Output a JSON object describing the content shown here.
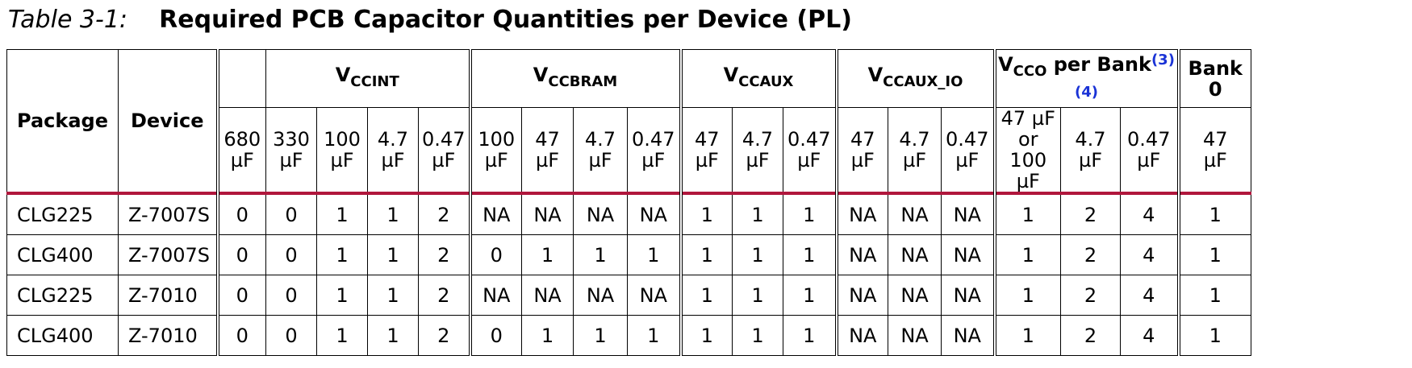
{
  "caption": {
    "label": "Table 3-1:",
    "title": "Required PCB Capacitor Quantities per Device (PL)"
  },
  "header": {
    "package": "Package",
    "device": "Device",
    "vccint": {
      "main": "V",
      "sub": "CCINT"
    },
    "vccbram": {
      "main": "V",
      "sub": "CCBRAM"
    },
    "vccaux": {
      "main": "V",
      "sub": "CCAUX"
    },
    "vccaux_io": {
      "main": "V",
      "sub": "CCAUX_IO"
    },
    "vcco": {
      "main": "V",
      "sub": "CCO",
      "rest": " per Bank",
      "refs": "(3)(4)"
    },
    "bank0": "Bank 0",
    "sub_columns": [
      [
        "680",
        "µF"
      ],
      [
        "330",
        "µF"
      ],
      [
        "100",
        "µF"
      ],
      [
        "4.7",
        "µF"
      ],
      [
        "0.47",
        "µF"
      ],
      [
        "100",
        "µF"
      ],
      [
        "47",
        "µF"
      ],
      [
        "4.7",
        "µF"
      ],
      [
        "0.47",
        "µF"
      ],
      [
        "47",
        "µF"
      ],
      [
        "4.7",
        "µF"
      ],
      [
        "0.47",
        "µF"
      ],
      [
        "47",
        "µF"
      ],
      [
        "4.7",
        "µF"
      ],
      [
        "0.47",
        "µF"
      ],
      [
        "47 µF",
        "or",
        "100 µF"
      ],
      [
        "4.7",
        "µF"
      ],
      [
        "0.47",
        "µF"
      ],
      [
        "47",
        "µF"
      ]
    ]
  },
  "rows": [
    [
      "CLG225",
      "Z-7007S",
      "0",
      "0",
      "1",
      "1",
      "2",
      "NA",
      "NA",
      "NA",
      "NA",
      "1",
      "1",
      "1",
      "NA",
      "NA",
      "NA",
      "1",
      "2",
      "4",
      "1"
    ],
    [
      "CLG400",
      "Z-7007S",
      "0",
      "0",
      "1",
      "1",
      "2",
      "0",
      "1",
      "1",
      "1",
      "1",
      "1",
      "1",
      "NA",
      "NA",
      "NA",
      "1",
      "2",
      "4",
      "1"
    ],
    [
      "CLG225",
      "Z-7010",
      "0",
      "0",
      "1",
      "1",
      "2",
      "NA",
      "NA",
      "NA",
      "NA",
      "1",
      "1",
      "1",
      "NA",
      "NA",
      "NA",
      "1",
      "2",
      "4",
      "1"
    ],
    [
      "CLG400",
      "Z-7010",
      "0",
      "0",
      "1",
      "1",
      "2",
      "0",
      "1",
      "1",
      "1",
      "1",
      "1",
      "1",
      "NA",
      "NA",
      "NA",
      "1",
      "2",
      "4",
      "1"
    ]
  ]
}
